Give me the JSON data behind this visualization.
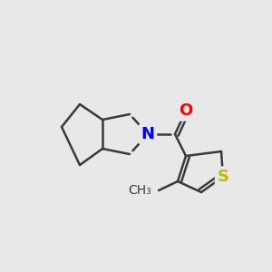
{
  "background_color": "#e8e8e8",
  "bond_color": "#3a3a3a",
  "bond_width": 1.8,
  "N_color": "#0000EE",
  "O_color": "#FF0000",
  "S_color": "#BBBB00",
  "font_size_atom": 13,
  "fig_w": 3.0,
  "fig_h": 3.0,
  "dpi": 100,
  "xlim": [
    0,
    300
  ],
  "ylim": [
    0,
    300
  ]
}
